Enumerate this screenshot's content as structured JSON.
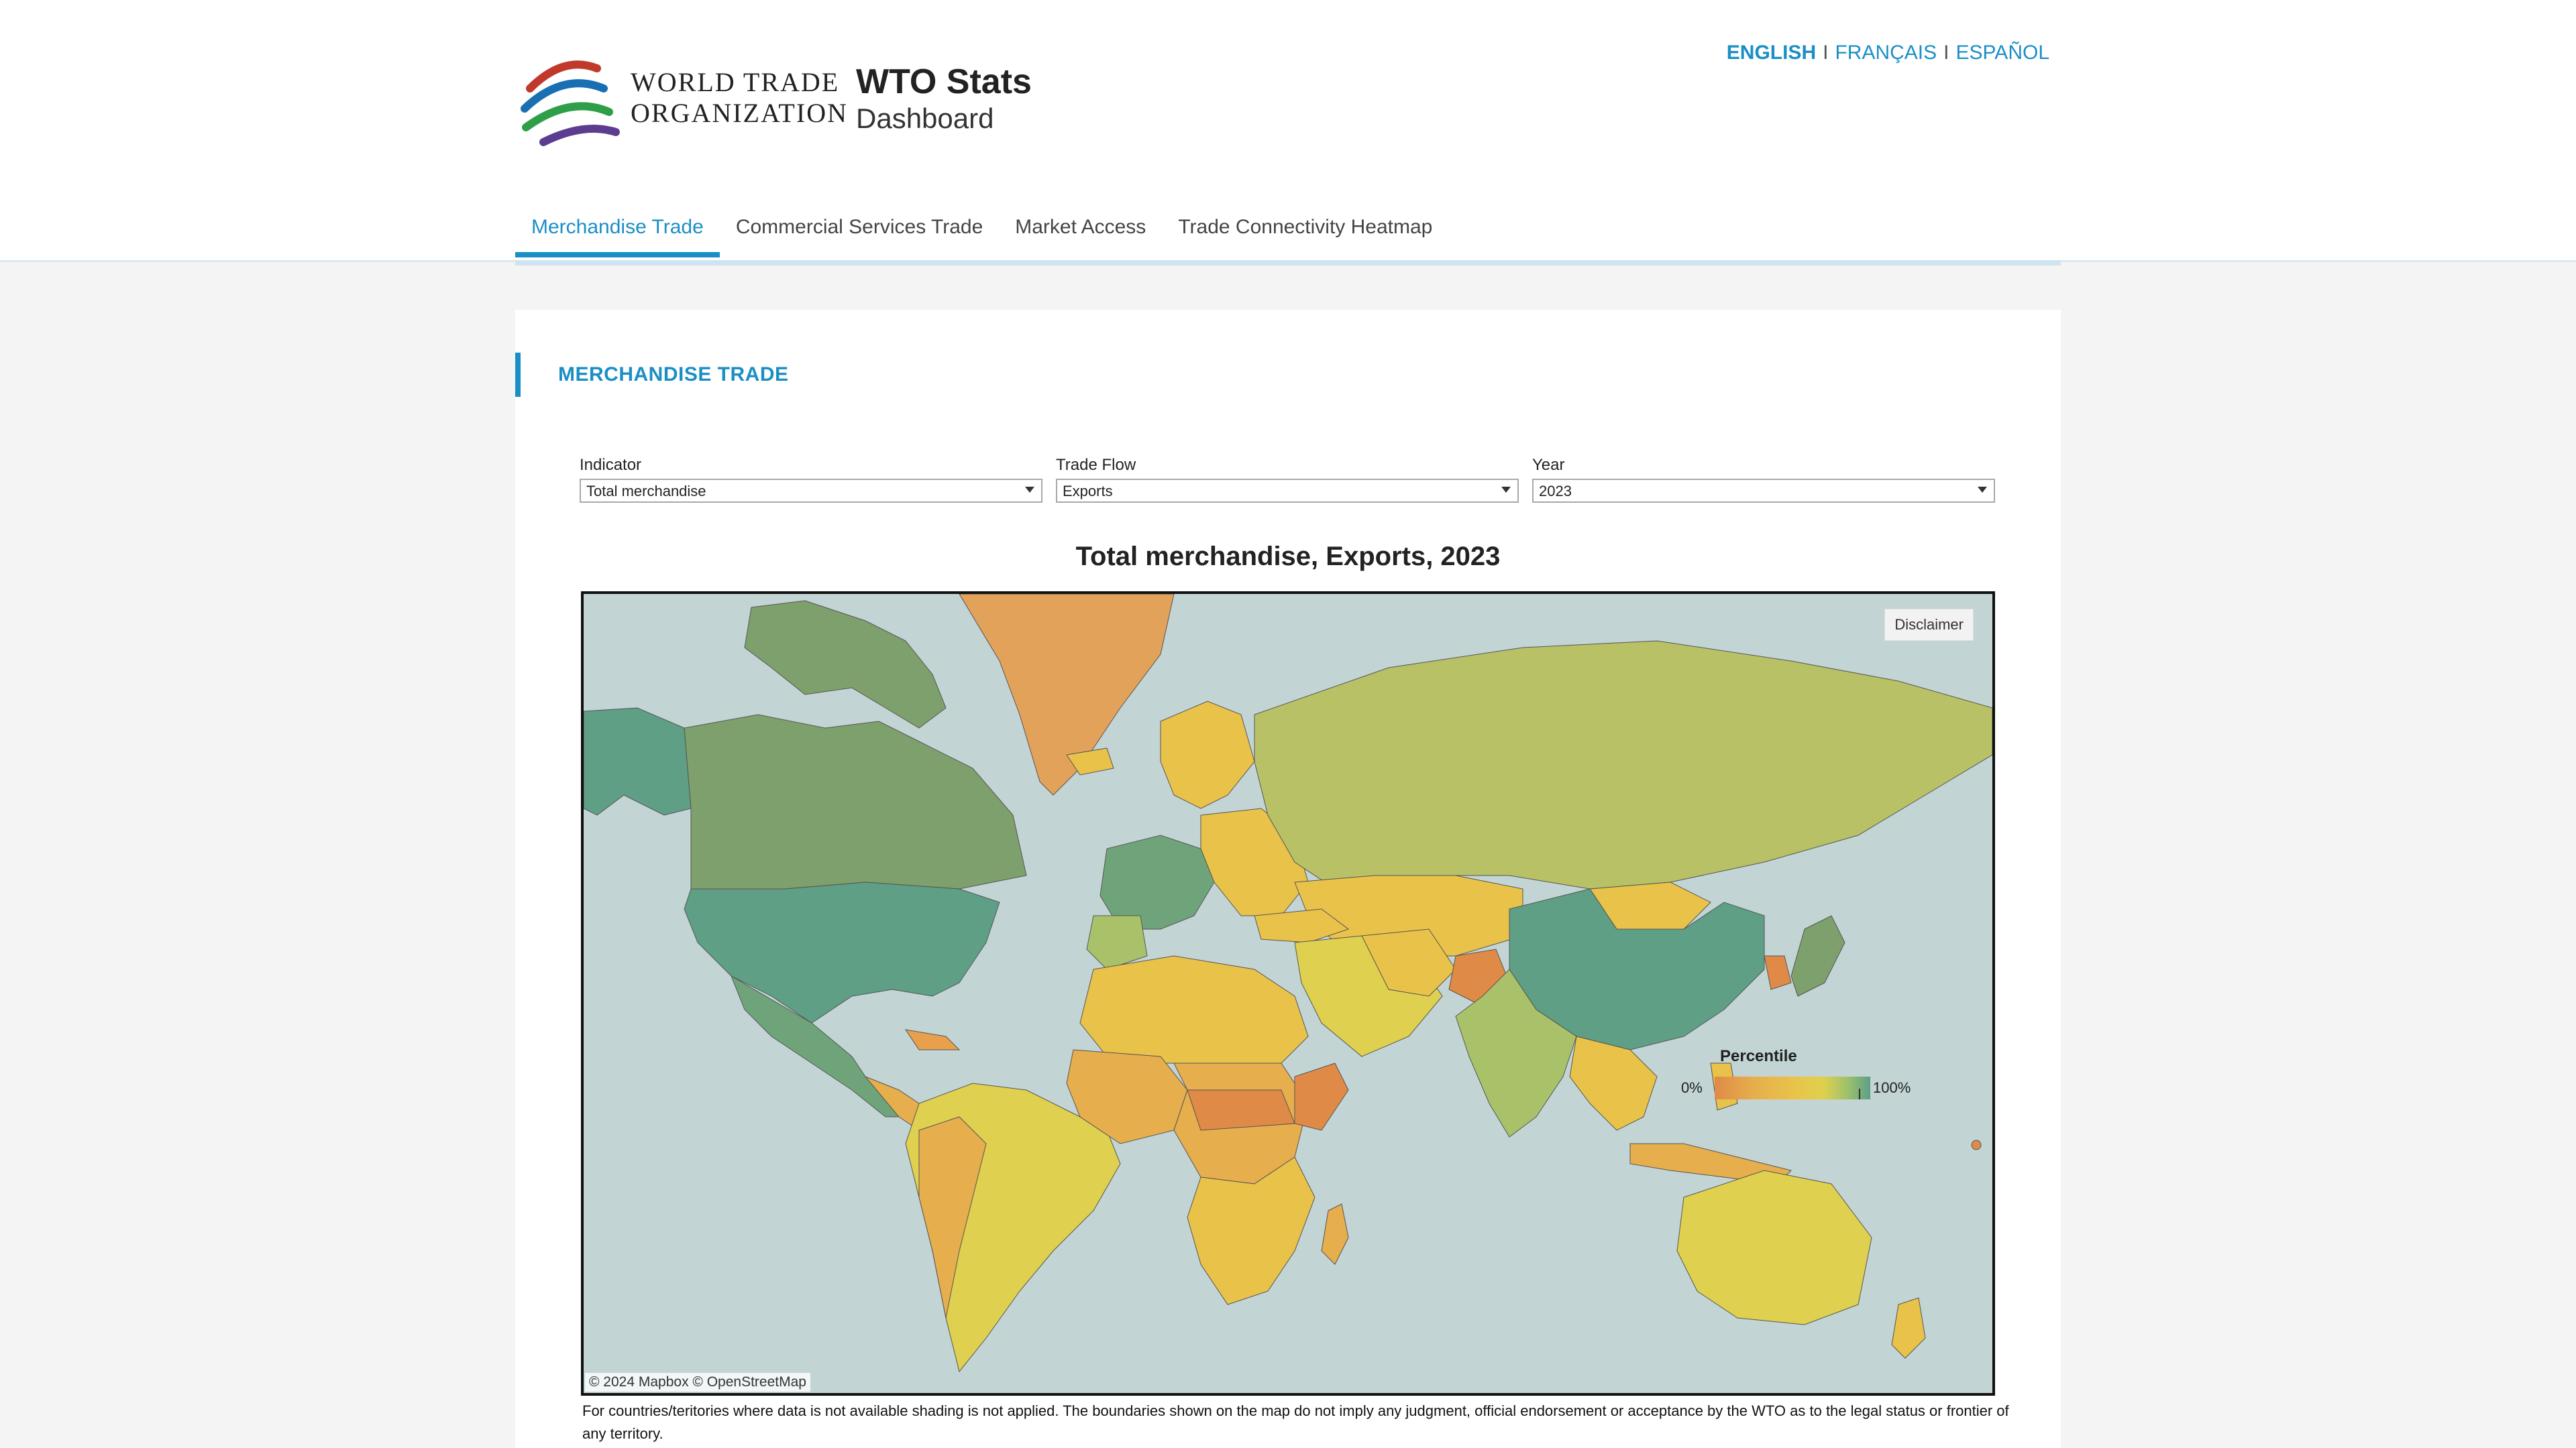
{
  "header": {
    "org_line1": "WORLD TRADE",
    "org_line2": "ORGANIZATION",
    "title": "WTO Stats",
    "subtitle": "Dashboard",
    "languages": [
      "ENGLISH",
      "FRANÇAIS",
      "ESPAÑOL"
    ],
    "active_language": "ENGLISH",
    "separator": "I"
  },
  "nav": {
    "tabs": [
      {
        "label": "Merchandise Trade",
        "active": true
      },
      {
        "label": "Commercial Services Trade",
        "active": false
      },
      {
        "label": "Market Access",
        "active": false
      },
      {
        "label": "Trade Connectivity Heatmap",
        "active": false
      }
    ]
  },
  "section": {
    "heading": "MERCHANDISE TRADE"
  },
  "filters": {
    "indicator": {
      "label": "Indicator",
      "value": "Total merchandise"
    },
    "trade_flow": {
      "label": "Trade Flow",
      "value": "Exports"
    },
    "year": {
      "label": "Year",
      "value": "2023"
    }
  },
  "map": {
    "title": "Total merchandise, Exports, 2023",
    "disclaimer_button": "Disclaimer",
    "attribution": "© 2024 Mapbox  © OpenStreetMap",
    "ocean_color": "#c2d4d4",
    "legend": {
      "title": "Percentile",
      "min_label": "0%",
      "max_label": "100%",
      "colors": [
        "#e08a47",
        "#e6ae4d",
        "#e9c24a",
        "#dfd04f",
        "#9ec26b",
        "#5e9f86"
      ]
    },
    "footnote": "For countries/teritories where data is not available shading is not applied. The boundaries shown on the map do not imply any judgment, official endorsement or acceptance by the WTO as to the legal status or frontier of any territory."
  }
}
